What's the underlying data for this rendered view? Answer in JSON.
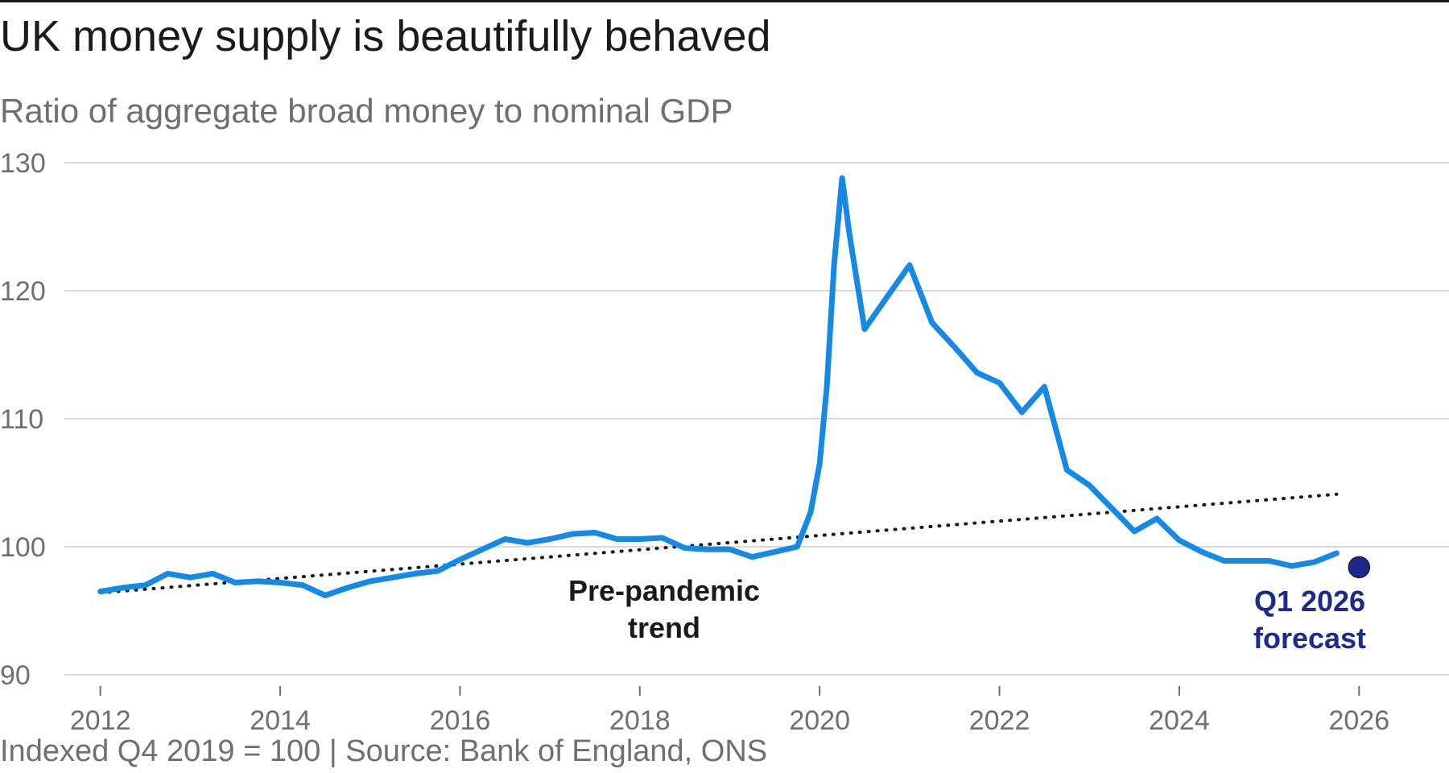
{
  "header": {
    "title": "UK money supply is beautifully behaved",
    "subtitle": "Ratio of aggregate broad money to nominal GDP"
  },
  "footer": {
    "note": "Indexed Q4 2019 = 100 | Source: Bank of England, ONS"
  },
  "colors": {
    "series": "#1589e6",
    "trend": "#1a1a1a",
    "forecast": "#1c2a8f",
    "grid": "#d9d9d9",
    "axis_text": "#6f6f6f"
  },
  "chart_data": {
    "type": "line",
    "ylim": [
      90,
      130
    ],
    "xlim": [
      2011.6,
      2027.0
    ],
    "yticks": [
      90,
      100,
      110,
      120,
      130
    ],
    "xticks": [
      2012,
      2014,
      2016,
      2018,
      2020,
      2022,
      2024,
      2026
    ],
    "grid": "horizontal",
    "series": [
      {
        "x": [
          2012.0,
          2012.25,
          2012.5,
          2012.75,
          2013.0,
          2013.25,
          2013.5,
          2013.75,
          2014.0,
          2014.25,
          2014.5,
          2014.75,
          2015.0,
          2015.25,
          2015.5,
          2015.75,
          2016.0,
          2016.25,
          2016.5,
          2016.75,
          2017.0,
          2017.25,
          2017.5,
          2017.75,
          2018.0,
          2018.25,
          2018.5,
          2018.75,
          2019.0,
          2019.25,
          2019.5,
          2019.75,
          2019.9,
          2020.0,
          2020.08,
          2020.16,
          2020.25,
          2020.33,
          2020.5,
          2020.75,
          2021.0,
          2021.25,
          2021.5,
          2021.75,
          2022.0,
          2022.25,
          2022.5,
          2022.75,
          2023.0,
          2023.25,
          2023.5,
          2023.75,
          2024.0,
          2024.25,
          2024.5,
          2024.75,
          2025.0,
          2025.25,
          2025.5,
          2025.75
        ],
        "y": [
          96.5,
          96.8,
          97.0,
          97.9,
          97.6,
          97.9,
          97.2,
          97.3,
          97.2,
          97.0,
          96.2,
          96.8,
          97.3,
          97.6,
          97.9,
          98.1,
          99.0,
          99.8,
          100.6,
          100.3,
          100.6,
          101.0,
          101.1,
          100.6,
          100.6,
          100.7,
          99.9,
          99.8,
          99.8,
          99.2,
          99.6,
          100.0,
          102.7,
          106.5,
          112.5,
          122.0,
          128.8,
          124.5,
          117.0,
          119.5,
          122.0,
          117.5,
          115.6,
          113.6,
          112.8,
          110.5,
          112.5,
          106.0,
          104.8,
          103.0,
          101.2,
          102.2,
          100.5,
          99.6,
          98.9,
          98.9,
          98.9,
          98.5,
          98.8,
          99.5
        ]
      },
      {
        "x": [
          2012.0,
          2025.75
        ],
        "y": [
          96.4,
          104.1
        ]
      }
    ],
    "forecast_point": {
      "x": 2026.0,
      "y": 98.4
    },
    "annotations": {
      "trend_line1": "Pre-pandemic",
      "trend_line2": "trend",
      "forecast_line1": "Q1 2026",
      "forecast_line2": "forecast"
    }
  }
}
